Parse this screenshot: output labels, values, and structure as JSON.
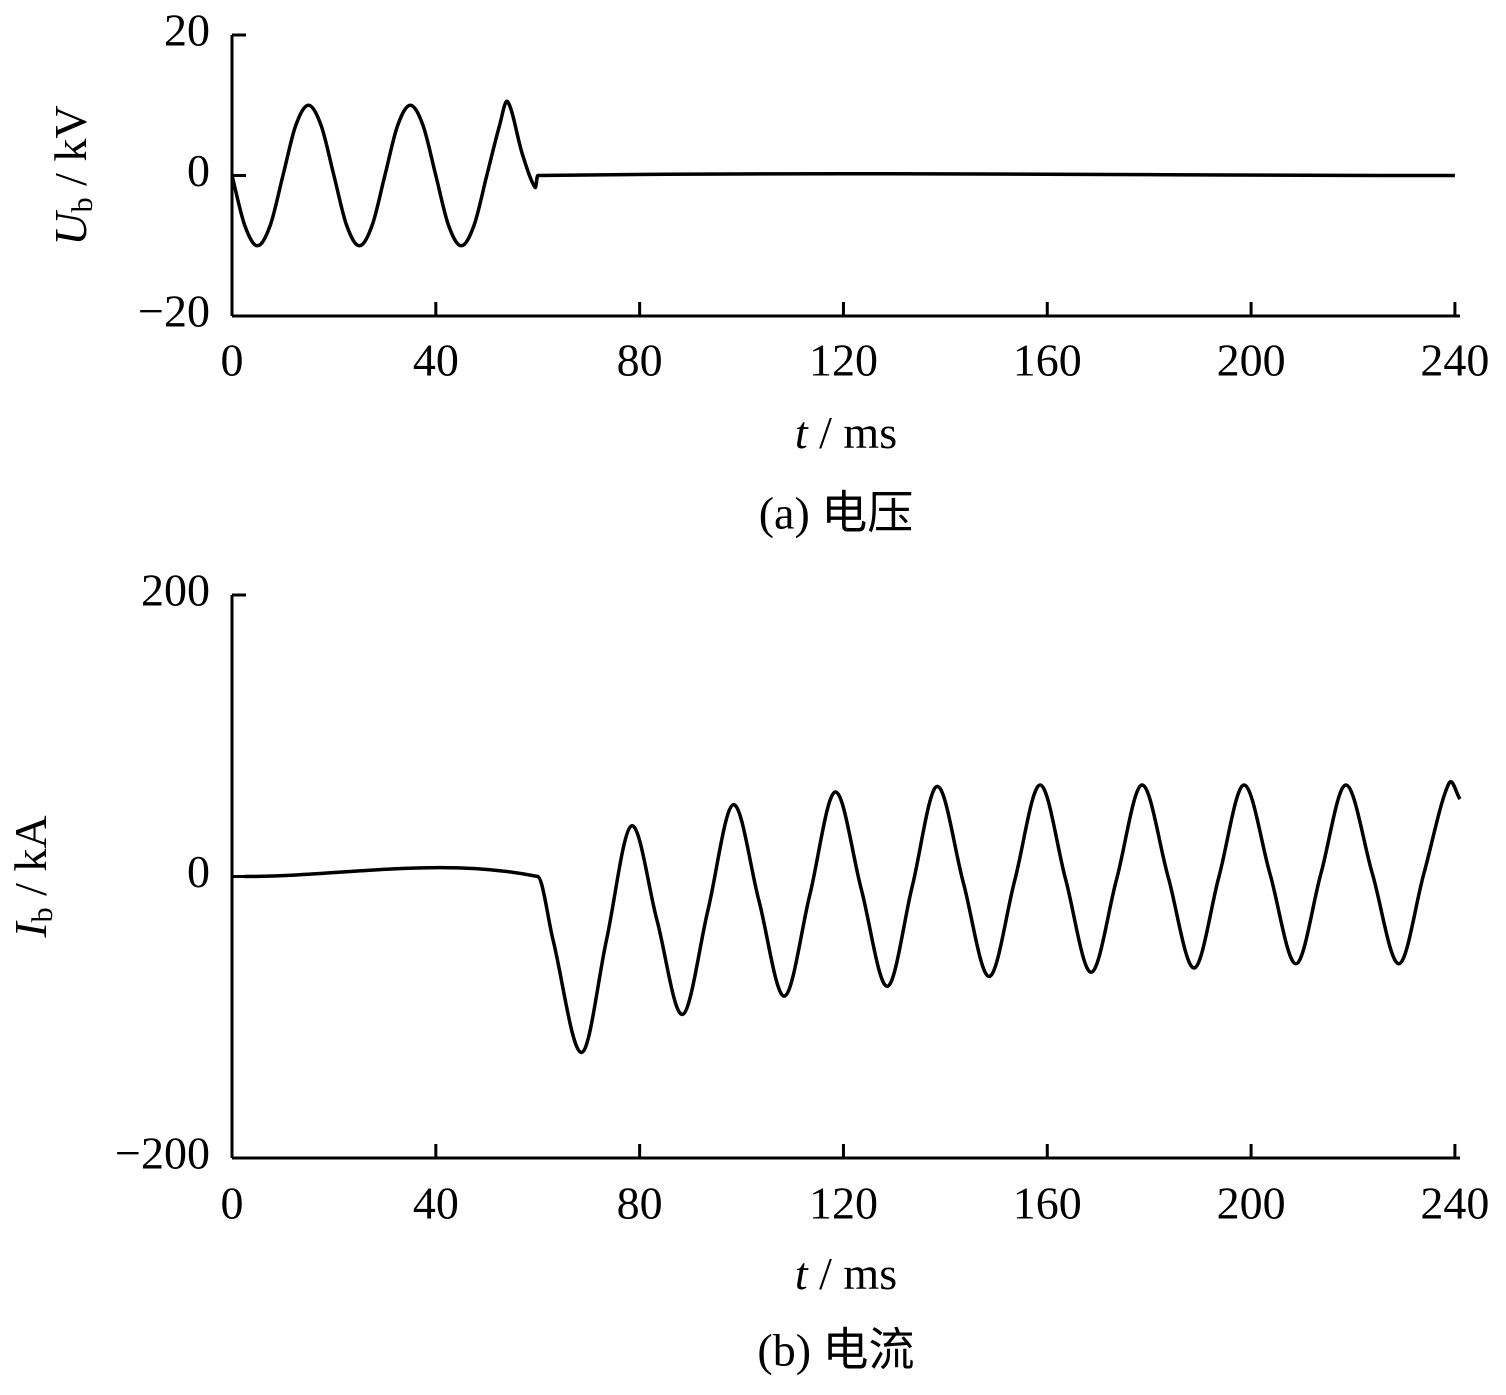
{
  "chart_data": [
    {
      "type": "line",
      "caption": "(a)  电压",
      "x_label": {
        "symbol": "t",
        "rest": " / ms"
      },
      "y_label": {
        "symbol": "U",
        "subscript": "b",
        "rest": " / kV"
      },
      "color": "#000000",
      "x": [
        0,
        2.5,
        5,
        7.5,
        10,
        12.5,
        15,
        17.5,
        20,
        22.5,
        25,
        27.5,
        30,
        32.5,
        35,
        37.5,
        40,
        42.5,
        45,
        47.5,
        50,
        52.5,
        54.1,
        57,
        59.5,
        60,
        240
      ],
      "values": [
        0,
        -7.1,
        -10,
        -7.1,
        0,
        7.1,
        10,
        7.1,
        0,
        -7.1,
        -10,
        -7.1,
        0,
        7.1,
        10,
        7.1,
        0,
        -7.1,
        -10,
        -7.1,
        0,
        7.1,
        10.5,
        3,
        -1.7,
        0,
        0
      ],
      "xlim": [
        0,
        241
      ],
      "xticks": [
        0,
        40,
        80,
        120,
        160,
        200,
        240
      ],
      "ylim": [
        -20,
        20
      ],
      "yticks": [
        {
          "value": -20,
          "label": "−20"
        },
        0,
        20
      ]
    },
    {
      "type": "line",
      "caption": "(b)  电流",
      "x_label": {
        "symbol": "t",
        "rest": " / ms"
      },
      "y_label": {
        "symbol": "I",
        "subscript": "b",
        "rest": " / kA"
      },
      "color": "#000000",
      "x": [
        2.5,
        60,
        63,
        68.6,
        73.5,
        78.4,
        83.4,
        88.4,
        93.4,
        98.4,
        103.4,
        108.4,
        113.4,
        118.4,
        123.5,
        128.6,
        133.5,
        138.4,
        143.5,
        148.6,
        153.6,
        158.6,
        163.6,
        168.6,
        173.6,
        178.6,
        183.7,
        188.8,
        193.7,
        198.6,
        203.7,
        208.8,
        213.7,
        218.6,
        223.8,
        229,
        233.9,
        238.8,
        241
      ],
      "values": [
        0,
        0,
        -45,
        -125,
        -45,
        36,
        -31,
        -98,
        -24,
        51,
        -17,
        -85,
        -13,
        60,
        -9,
        -78,
        -7,
        64,
        -4,
        -71,
        -3,
        65,
        -2,
        -68,
        -2,
        65,
        0,
        -65,
        0,
        65,
        2,
        -62,
        2,
        65,
        2,
        -62,
        2,
        66,
        55
      ],
      "xlim": [
        0,
        241
      ],
      "xticks": [
        0,
        40,
        80,
        120,
        160,
        200,
        240
      ],
      "ylim": [
        -200,
        200
      ],
      "yticks": [
        {
          "value": -200,
          "label": "−200"
        },
        0,
        200
      ]
    }
  ]
}
